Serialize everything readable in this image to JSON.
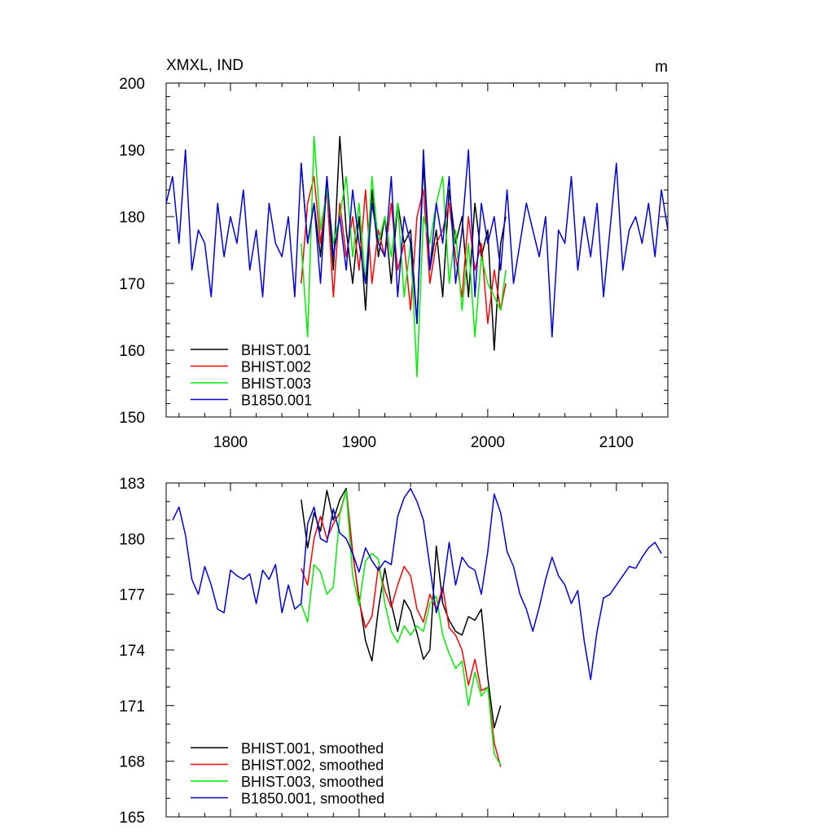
{
  "chart_data": [
    {
      "type": "line",
      "title": "XMXL, IND",
      "units": "m",
      "xlim": [
        1750,
        2140
      ],
      "ylim": [
        150,
        200
      ],
      "xticks": [
        1800,
        1900,
        2000,
        2100
      ],
      "yticks": [
        150,
        160,
        170,
        180,
        190,
        200
      ],
      "legend_position": "bottom-left",
      "grid": false,
      "series": [
        {
          "name": "BHIST.001",
          "color": "#000000",
          "x": [
            1855,
            1860,
            1865,
            1870,
            1875,
            1880,
            1885,
            1890,
            1895,
            1900,
            1905,
            1910,
            1915,
            1920,
            1925,
            1930,
            1935,
            1940,
            1945,
            1950,
            1955,
            1960,
            1965,
            1970,
            1975,
            1980,
            1985,
            1990,
            1995,
            2000,
            2005,
            2010,
            2014
          ],
          "y": [
            188,
            176,
            182,
            174,
            186,
            172,
            192,
            178,
            170,
            180,
            166,
            184,
            174,
            180,
            170,
            182,
            176,
            178,
            164,
            188,
            172,
            178,
            168,
            184,
            176,
            180,
            168,
            182,
            174,
            178,
            160,
            176,
            180
          ]
        },
        {
          "name": "BHIST.002",
          "color": "#ff0000",
          "x": [
            1855,
            1860,
            1865,
            1870,
            1875,
            1880,
            1885,
            1890,
            1895,
            1900,
            1905,
            1910,
            1915,
            1920,
            1925,
            1930,
            1935,
            1940,
            1945,
            1950,
            1955,
            1960,
            1965,
            1970,
            1975,
            1980,
            1985,
            1990,
            1995,
            2000,
            2005,
            2010,
            2014
          ],
          "y": [
            170,
            182,
            186,
            176,
            184,
            168,
            182,
            174,
            180,
            172,
            184,
            170,
            178,
            174,
            182,
            172,
            176,
            166,
            180,
            184,
            170,
            176,
            178,
            182,
            174,
            168,
            180,
            172,
            176,
            164,
            172,
            166,
            170
          ]
        },
        {
          "name": "BHIST.003",
          "color": "#00ee00",
          "x": [
            1855,
            1860,
            1865,
            1870,
            1875,
            1880,
            1885,
            1890,
            1895,
            1900,
            1905,
            1910,
            1915,
            1920,
            1925,
            1930,
            1935,
            1940,
            1945,
            1950,
            1955,
            1960,
            1965,
            1970,
            1975,
            1980,
            1985,
            1990,
            1995,
            2000,
            2005,
            2010,
            2014
          ],
          "y": [
            176,
            162,
            192,
            178,
            184,
            176,
            180,
            186,
            174,
            182,
            170,
            186,
            176,
            180,
            174,
            182,
            168,
            176,
            156,
            180,
            176,
            182,
            186,
            170,
            178,
            166,
            176,
            162,
            174,
            170,
            168,
            166,
            172
          ]
        },
        {
          "name": "B1850.001",
          "color": "#0000dd",
          "x": [
            1750,
            1755,
            1760,
            1765,
            1770,
            1775,
            1780,
            1785,
            1790,
            1795,
            1800,
            1805,
            1810,
            1815,
            1820,
            1825,
            1830,
            1835,
            1840,
            1845,
            1850,
            1855,
            1860,
            1865,
            1870,
            1875,
            1880,
            1885,
            1890,
            1895,
            1900,
            1905,
            1910,
            1915,
            1920,
            1925,
            1930,
            1935,
            1940,
            1945,
            1950,
            1955,
            1960,
            1965,
            1970,
            1975,
            1980,
            1985,
            1990,
            1995,
            2000,
            2005,
            2010,
            2015,
            2020,
            2025,
            2030,
            2035,
            2040,
            2045,
            2050,
            2055,
            2060,
            2065,
            2070,
            2075,
            2080,
            2085,
            2090,
            2095,
            2100,
            2105,
            2110,
            2115,
            2120,
            2125,
            2130,
            2135,
            2140
          ],
          "y": [
            182,
            186,
            176,
            190,
            172,
            178,
            176,
            168,
            182,
            174,
            180,
            176,
            184,
            172,
            178,
            168,
            182,
            176,
            174,
            180,
            168,
            188,
            176,
            182,
            170,
            186,
            174,
            180,
            172,
            184,
            176,
            170,
            182,
            176,
            174,
            186,
            168,
            180,
            176,
            164,
            190,
            172,
            182,
            176,
            186,
            170,
            178,
            190,
            168,
            182,
            176,
            180,
            172,
            184,
            170,
            176,
            182,
            178,
            174,
            180,
            162,
            178,
            176,
            186,
            172,
            180,
            174,
            182,
            168,
            178,
            188,
            172,
            178,
            180,
            176,
            182,
            174,
            184,
            178
          ]
        }
      ]
    },
    {
      "type": "line",
      "xlim": [
        1750,
        2140
      ],
      "ylim": [
        165,
        183
      ],
      "xticks": [
        1800,
        1900,
        2000,
        2100
      ],
      "yticks": [
        165,
        168,
        171,
        174,
        177,
        180,
        183
      ],
      "legend_position": "bottom-left",
      "grid": false,
      "series": [
        {
          "name": "BHIST.001, smoothed",
          "color": "#000000",
          "x": [
            1855,
            1860,
            1865,
            1870,
            1875,
            1880,
            1885,
            1890,
            1895,
            1900,
            1905,
            1910,
            1915,
            1920,
            1925,
            1930,
            1935,
            1940,
            1945,
            1950,
            1955,
            1960,
            1965,
            1970,
            1975,
            1980,
            1985,
            1990,
            1995,
            2000,
            2005,
            2010
          ],
          "y": [
            182.1,
            179.5,
            181.4,
            180.4,
            182.6,
            181.0,
            182.1,
            182.7,
            179.2,
            176.8,
            174.5,
            173.4,
            176.2,
            178.4,
            176.5,
            175.0,
            176.7,
            176.1,
            174.9,
            173.5,
            174.0,
            179.6,
            176.5,
            175.6,
            175.0,
            174.8,
            175.8,
            175.6,
            176.2,
            172.5,
            169.8,
            171.0
          ]
        },
        {
          "name": "BHIST.002, smoothed",
          "color": "#ff0000",
          "x": [
            1855,
            1860,
            1865,
            1870,
            1875,
            1880,
            1885,
            1890,
            1895,
            1900,
            1905,
            1910,
            1915,
            1920,
            1925,
            1930,
            1935,
            1940,
            1945,
            1950,
            1955,
            1960,
            1965,
            1970,
            1975,
            1980,
            1985,
            1990,
            1995,
            2000,
            2005,
            2010
          ],
          "y": [
            178.4,
            177.5,
            180.0,
            181.2,
            180.0,
            180.8,
            181.4,
            182.6,
            179.3,
            176.6,
            175.2,
            175.8,
            178.5,
            177.2,
            176.3,
            177.5,
            178.5,
            178.0,
            176.2,
            175.5,
            177.0,
            176.2,
            177.4,
            175.2,
            174.8,
            174.0,
            172.1,
            173.5,
            171.8,
            172.0,
            169.0,
            167.7
          ]
        },
        {
          "name": "BHIST.003, smoothed",
          "color": "#00ee00",
          "x": [
            1855,
            1860,
            1865,
            1870,
            1875,
            1880,
            1885,
            1890,
            1895,
            1900,
            1905,
            1910,
            1915,
            1920,
            1925,
            1930,
            1935,
            1940,
            1945,
            1950,
            1955,
            1960,
            1965,
            1970,
            1975,
            1980,
            1985,
            1990,
            1995,
            2000,
            2005,
            2010
          ],
          "y": [
            176.5,
            175.5,
            178.6,
            178.2,
            177.0,
            177.4,
            181.3,
            182.6,
            178.0,
            176.4,
            178.8,
            179.2,
            178.9,
            176.5,
            175.0,
            174.4,
            175.3,
            174.8,
            175.3,
            175.0,
            176.5,
            176.9,
            174.8,
            173.8,
            173.0,
            173.4,
            171.0,
            172.8,
            171.5,
            172.0,
            168.4,
            167.8
          ]
        },
        {
          "name": "B1850.001, smoothed",
          "color": "#0000dd",
          "x": [
            1755,
            1760,
            1765,
            1770,
            1775,
            1780,
            1785,
            1790,
            1795,
            1800,
            1805,
            1810,
            1815,
            1820,
            1825,
            1830,
            1835,
            1840,
            1845,
            1850,
            1855,
            1860,
            1865,
            1870,
            1875,
            1880,
            1885,
            1890,
            1895,
            1900,
            1905,
            1910,
            1915,
            1920,
            1925,
            1930,
            1935,
            1940,
            1945,
            1950,
            1955,
            1960,
            1965,
            1970,
            1975,
            1980,
            1985,
            1990,
            1995,
            2000,
            2005,
            2010,
            2015,
            2020,
            2025,
            2030,
            2035,
            2040,
            2045,
            2050,
            2055,
            2060,
            2065,
            2070,
            2075,
            2080,
            2085,
            2090,
            2095,
            2100,
            2105,
            2110,
            2115,
            2120,
            2125,
            2130,
            2135
          ],
          "y": [
            181.0,
            181.7,
            180.2,
            177.8,
            177.0,
            178.5,
            177.5,
            176.2,
            176.0,
            178.3,
            178.0,
            177.8,
            178.1,
            176.5,
            178.3,
            177.8,
            178.6,
            176.0,
            177.5,
            176.2,
            176.5,
            180.8,
            181.7,
            180.0,
            179.8,
            181.6,
            180.3,
            180.0,
            179.2,
            178.2,
            179.5,
            178.8,
            178.3,
            178.8,
            178.6,
            181.2,
            182.2,
            182.7,
            182.0,
            181.0,
            178.5,
            176.0,
            177.2,
            179.8,
            177.5,
            179.0,
            178.5,
            178.3,
            177.0,
            179.3,
            182.4,
            181.4,
            179.3,
            178.5,
            177.0,
            176.2,
            175.0,
            176.3,
            177.8,
            179.0,
            178.0,
            177.5,
            176.5,
            177.2,
            174.5,
            172.4,
            175.0,
            176.8,
            177.0,
            177.5,
            178.0,
            178.5,
            178.4,
            179.0,
            179.5,
            179.8,
            179.2
          ]
        }
      ]
    }
  ]
}
